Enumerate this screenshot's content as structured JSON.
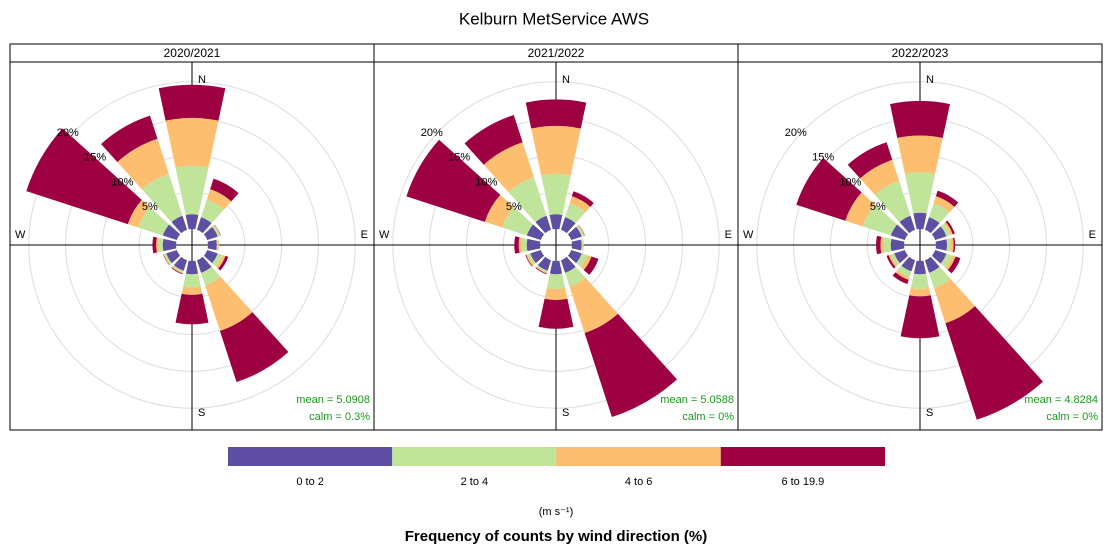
{
  "chart_data": {
    "type": "windrose",
    "title": "Kelburn MetService AWS",
    "caption": "Frequency of counts by wind direction (%)",
    "legend_title": "(m s⁻¹)",
    "compass": [
      "N",
      "E",
      "S",
      "W"
    ],
    "directions": [
      0,
      30,
      60,
      90,
      120,
      150,
      180,
      210,
      240,
      270,
      300,
      330
    ],
    "rlim": [
      0,
      25
    ],
    "rticks": [
      {
        "value": 5,
        "label": "5%"
      },
      {
        "value": 10,
        "label": "10%"
      },
      {
        "value": 15,
        "label": "15%"
      },
      {
        "value": 20,
        "label": "20%"
      }
    ],
    "series": [
      {
        "name": "0 to 2",
        "color": "#5e4fa2"
      },
      {
        "name": "2 to 4",
        "color": "#bfe49a"
      },
      {
        "name": "4 to 6",
        "color": "#fdbf6f"
      },
      {
        "name": "6 to 19.9",
        "color": "#9e0142"
      }
    ],
    "panels": [
      {
        "title": "2020/2021",
        "stats": [
          "mean = 5.0908",
          "calm = 0.3%"
        ],
        "values": [
          [
            2,
            1.8,
            1.5,
            1.2,
            1.5,
            1.8,
            1.8,
            1.5,
            1.5,
            1.8,
            2,
            2
          ],
          [
            6.6,
            2.5,
            0.3,
            0.2,
            0.7,
            1.8,
            1.8,
            0.3,
            0.3,
            0.6,
            3.5,
            6
          ],
          [
            6.5,
            1.5,
            0.1,
            0.1,
            0.4,
            6.5,
            1,
            0.1,
            0.1,
            0.3,
            1.5,
            5
          ],
          [
            4.5,
            1.5,
            0.05,
            0,
            0.4,
            7.3,
            4,
            0.1,
            0.05,
            0.5,
            14.5,
            3.3
          ]
        ]
      },
      {
        "title": "2021/2022",
        "stats": [
          "mean = 5.0588",
          "calm = 0%"
        ],
        "values": [
          [
            2,
            1.8,
            1.5,
            1.3,
            1.5,
            1.8,
            1.8,
            1.5,
            1.5,
            1.8,
            2,
            2
          ],
          [
            5.5,
            2,
            0.3,
            0.2,
            0.8,
            2,
            2,
            0.3,
            0.4,
            0.7,
            3.5,
            5.5
          ],
          [
            6.5,
            1,
            0.1,
            0.1,
            0.6,
            6.6,
            1.5,
            0.1,
            0.2,
            0.4,
            2.5,
            5
          ],
          [
            3.6,
            0.7,
            0.05,
            0,
            1,
            12,
            3.9,
            0.1,
            0.1,
            0.6,
            11.2,
            3.9
          ]
        ]
      },
      {
        "title": "2022/2023",
        "stats": [
          "mean = 4.8284",
          "calm = 0%"
        ],
        "values": [
          [
            2.2,
            1.8,
            1.6,
            1.5,
            1.6,
            1.8,
            1.8,
            1.6,
            1.5,
            1.8,
            2,
            2
          ],
          [
            5.5,
            2,
            0.6,
            0.5,
            0.8,
            2.2,
            2,
            0.8,
            0.5,
            1,
            4,
            5
          ],
          [
            5,
            1,
            0.3,
            0.4,
            0.5,
            5,
            1,
            0.4,
            0.3,
            0.4,
            2.5,
            3
          ],
          [
            4.7,
            0.8,
            0.3,
            0.2,
            0.7,
            13.8,
            5.7,
            0.6,
            0.3,
            0.6,
            7,
            2.5
          ]
        ]
      }
    ]
  }
}
